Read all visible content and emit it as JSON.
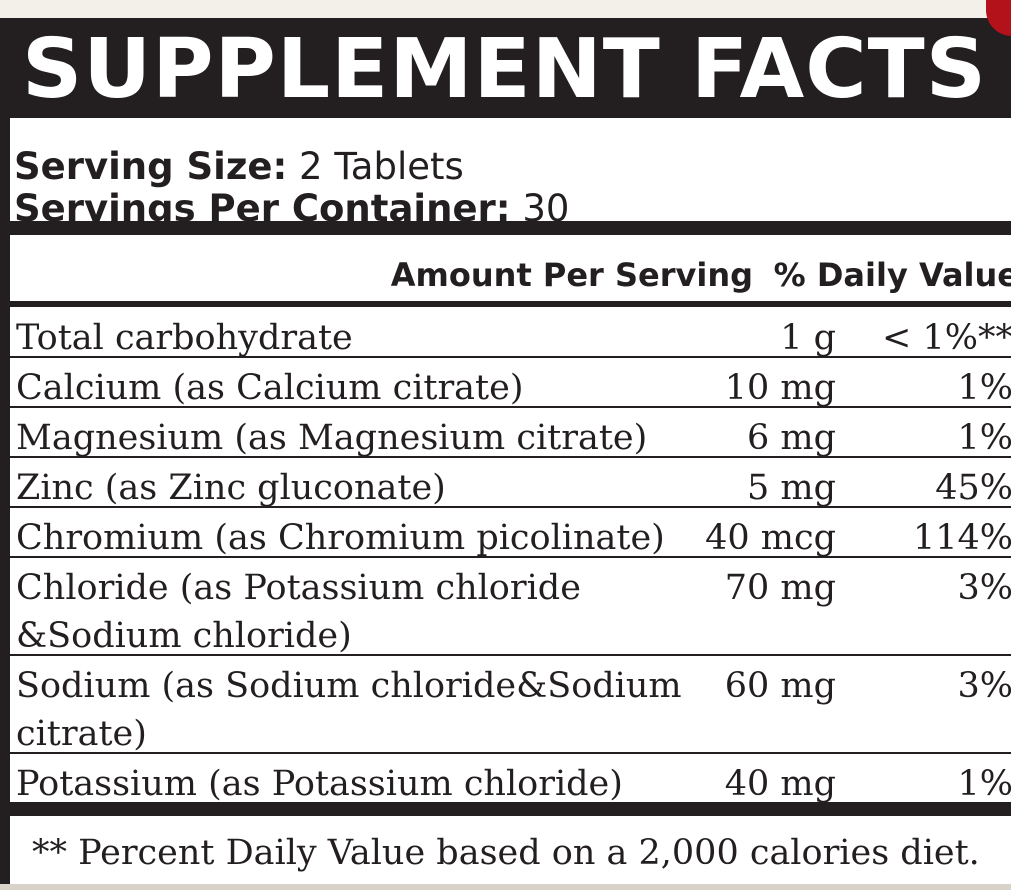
{
  "title": "SUPPLEMENT FACTS",
  "serving": {
    "size_label": "Serving Size:",
    "size_value": "2 Tablets",
    "per_container_label": "Servings Per Container:",
    "per_container_value": "30"
  },
  "columns": {
    "amount": "Amount Per Serving",
    "daily_value": "% Daily Value"
  },
  "rows": [
    {
      "name": "Total carbohydrate",
      "name2": "",
      "amount": "1 g",
      "dv": "< 1%**"
    },
    {
      "name": "Calcium (as Calcium citrate)",
      "name2": "",
      "amount": "10 mg",
      "dv": "1%"
    },
    {
      "name": "Magnesium (as Magnesium citrate)",
      "name2": "",
      "amount": "6 mg",
      "dv": "1%"
    },
    {
      "name": "Zinc (as Zinc gluconate)",
      "name2": "",
      "amount": "5 mg",
      "dv": "45%"
    },
    {
      "name": "Chromium (as Chromium picolinate)",
      "name2": "",
      "amount": "40 mcg",
      "dv": "114%"
    },
    {
      "name": "Chloride (as Potassium chloride",
      "name2": "&Sodium chloride)",
      "amount": "70 mg",
      "dv": "3%"
    },
    {
      "name": "Sodium (as Sodium chloride&Sodium",
      "name2": "citrate)",
      "amount": "60 mg",
      "dv": "3%"
    },
    {
      "name": "Potassium (as Potassium chloride)",
      "name2": "",
      "amount": "40 mg",
      "dv": "1%"
    }
  ],
  "footnote": "** Percent Daily Value based on a 2,000 calories diet.",
  "colors": {
    "ink": "#231f20",
    "background": "#ffffff",
    "accent": "#b3121b"
  }
}
